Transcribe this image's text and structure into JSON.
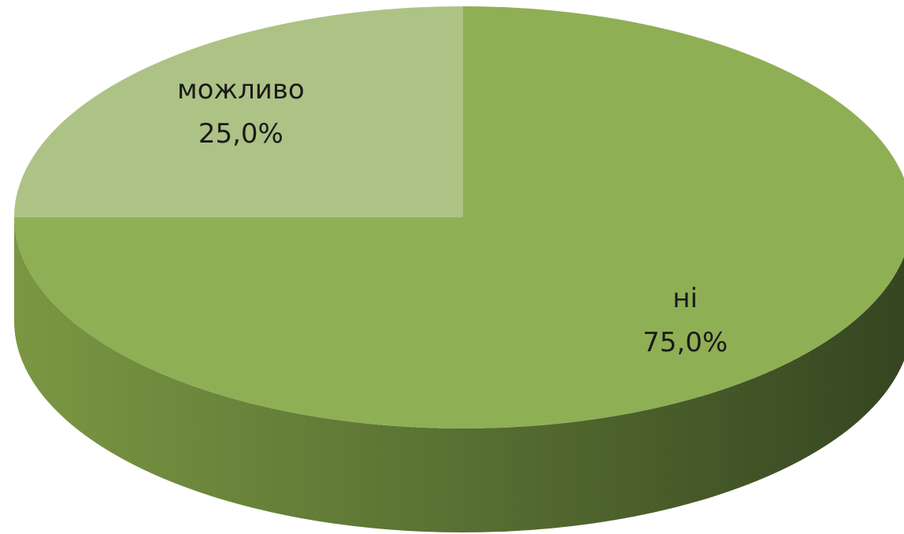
{
  "chart_data": {
    "type": "pie",
    "categories": [
      "ні",
      "можливо"
    ],
    "values": [
      75,
      25
    ],
    "value_labels": [
      "75,0%",
      "25,0%"
    ],
    "colors": [
      "#8faf55",
      "#adc385"
    ]
  }
}
